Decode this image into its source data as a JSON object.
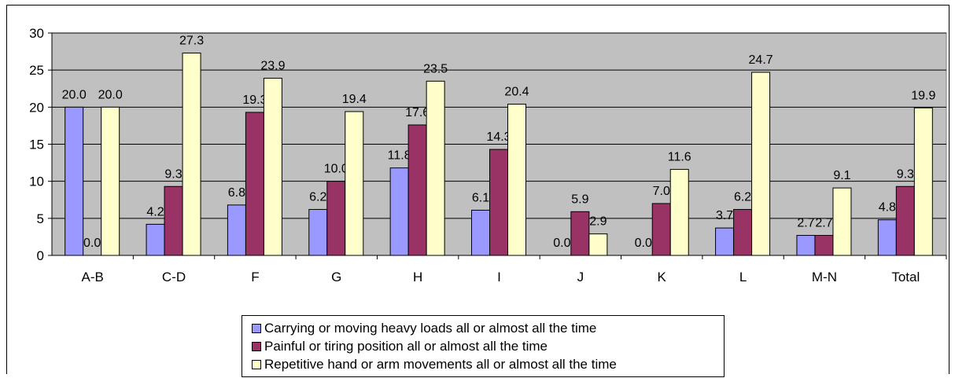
{
  "chart_data": {
    "type": "bar",
    "categories": [
      "A-B",
      "C-D",
      "F",
      "G",
      "H",
      "I",
      "J",
      "K",
      "L",
      "M-N",
      "Total"
    ],
    "series": [
      {
        "name": "Carrying or moving heavy loads all or almost all the time",
        "values": [
          20.0,
          4.2,
          6.8,
          6.2,
          11.8,
          6.1,
          0.0,
          0.0,
          3.7,
          2.7,
          4.8
        ],
        "labels": [
          "20.0",
          "4.2",
          "6.8",
          "6.2",
          "11.8",
          "6.1",
          "0.0",
          "0.0",
          "3.7",
          "2.7",
          "4.8"
        ],
        "color": "#9999FF"
      },
      {
        "name": "Painful or tiring position all or almost all the time",
        "values": [
          0.0,
          9.3,
          19.3,
          10.0,
          17.6,
          14.3,
          5.9,
          7.0,
          6.2,
          2.7,
          9.3
        ],
        "labels": [
          "0.0",
          "9.3",
          "19.3",
          "10.0",
          "17.6",
          "14.3",
          "5.9",
          "7.0",
          "6.2",
          "2.7",
          "9.3"
        ],
        "color": "#993366"
      },
      {
        "name": "Repetitive hand or arm movements all or almost all the time",
        "values": [
          20.0,
          27.3,
          23.9,
          19.4,
          23.5,
          20.4,
          2.9,
          11.6,
          24.7,
          9.1,
          19.9
        ],
        "labels": [
          "20.0",
          "27.3",
          "23.9",
          "19.4",
          "23.5",
          "20.4",
          "2.9",
          "11.6",
          "24.7",
          "9.1",
          "19.9"
        ],
        "color": "#FFFFCC"
      }
    ],
    "yticks": [
      "0",
      "5",
      "10",
      "15",
      "20",
      "25",
      "30"
    ],
    "ylim": [
      0,
      30
    ],
    "plot_background": "#C0C0C0",
    "grid": true,
    "legend_position": "bottom"
  }
}
